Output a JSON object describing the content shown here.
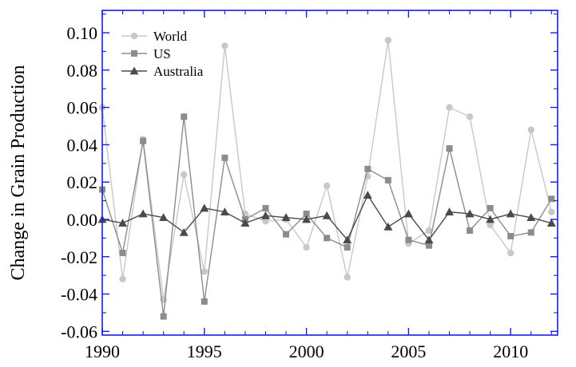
{
  "chart_data": {
    "type": "line",
    "title": "",
    "xlabel": "",
    "ylabel": "Change in Grain Production",
    "xlim": [
      1990,
      2012.3
    ],
    "ylim": [
      -0.062,
      0.112
    ],
    "x_ticks": [
      1990,
      1995,
      2000,
      2005,
      2010
    ],
    "x_tick_labels": [
      "1990",
      "1995",
      "2000",
      "2005",
      "2010"
    ],
    "y_ticks": [
      0.1,
      0.08,
      0.06,
      0.04,
      0.02,
      0.0,
      -0.02,
      -0.04,
      -0.06
    ],
    "y_tick_labels": [
      "0.10",
      "0.08",
      "0.06",
      "0.04",
      "0.02",
      "0.00",
      "-0.02",
      "-0.04",
      "-0.06"
    ],
    "grid": false,
    "legend_position": "top-left",
    "x": [
      1990,
      1991,
      1992,
      1993,
      1994,
      1995,
      1996,
      1997,
      1998,
      1999,
      2000,
      2001,
      2002,
      2003,
      2004,
      2005,
      2006,
      2007,
      2008,
      2009,
      2010,
      2011,
      2012
    ],
    "series": [
      {
        "name": "World",
        "marker": "circle",
        "color": "#c8c8c8",
        "values": [
          0.06,
          -0.032,
          0.043,
          -0.043,
          0.024,
          -0.028,
          0.093,
          0.003,
          -0.001,
          0.0,
          -0.015,
          0.018,
          -0.031,
          0.023,
          0.096,
          -0.013,
          -0.006,
          0.06,
          0.055,
          -0.003,
          -0.018,
          0.048,
          0.004
        ]
      },
      {
        "name": "US",
        "marker": "square",
        "color": "#8c8c8c",
        "values": [
          0.016,
          -0.018,
          0.042,
          -0.052,
          0.055,
          -0.044,
          0.033,
          0.0,
          0.006,
          -0.008,
          0.003,
          -0.01,
          -0.015,
          0.027,
          0.021,
          -0.011,
          -0.014,
          0.038,
          -0.006,
          0.006,
          -0.009,
          -0.007,
          0.011
        ]
      },
      {
        "name": "Australia",
        "marker": "triangle",
        "color": "#4a4a4a",
        "values": [
          0.0,
          -0.002,
          0.003,
          0.001,
          -0.007,
          0.006,
          0.004,
          -0.002,
          0.002,
          0.001,
          0.0,
          0.002,
          -0.011,
          0.013,
          -0.004,
          0.003,
          -0.011,
          0.004,
          0.003,
          0.0,
          0.003,
          0.001,
          -0.002
        ]
      }
    ]
  },
  "colors": {
    "axes_frame": "#1c1cdc",
    "text": "#000000"
  }
}
